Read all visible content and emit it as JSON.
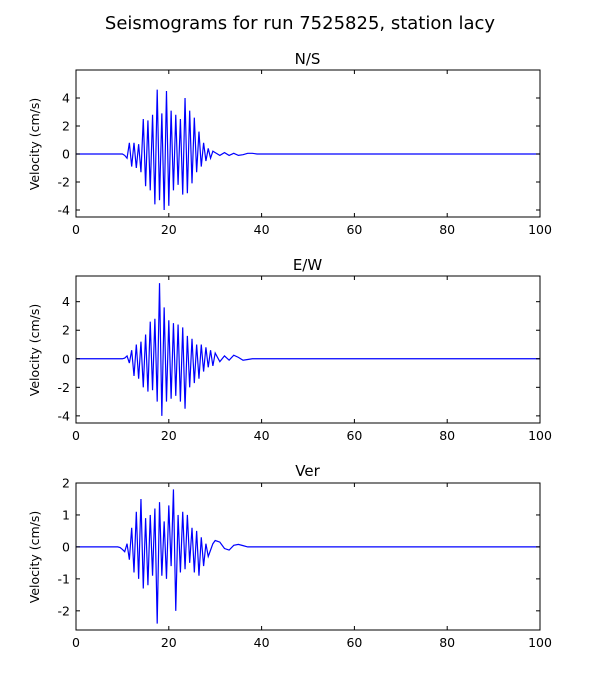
{
  "figure": {
    "title": "Seismograms for run 7525825, station lacy"
  },
  "chart_data": [
    {
      "type": "line",
      "title": "N/S",
      "xlabel": "",
      "ylabel": "Velocity (cm/s)",
      "xlim": [
        0,
        100
      ],
      "ylim": [
        -4.5,
        6.0
      ],
      "xticks": [
        0,
        20,
        40,
        60,
        80,
        100
      ],
      "yticks": [
        -4,
        -2,
        0,
        2,
        4
      ],
      "grid": false,
      "color": "#0000ff",
      "x": [
        0,
        10,
        10.5,
        11,
        11.5,
        12,
        12.5,
        13,
        13.5,
        14,
        14.5,
        15,
        15.5,
        16,
        16.5,
        17,
        17.5,
        18,
        18.5,
        19,
        19.5,
        20,
        20.5,
        21,
        21.5,
        22,
        22.5,
        23,
        23.5,
        24,
        24.5,
        25,
        25.5,
        26,
        26.5,
        27,
        27.5,
        28,
        28.5,
        29,
        29.5,
        30,
        31,
        32,
        33,
        34,
        35,
        36,
        37,
        38,
        39,
        40,
        41,
        42,
        45,
        50,
        60,
        70,
        80,
        90,
        100
      ],
      "y": [
        0,
        0,
        -0.1,
        -0.3,
        0.8,
        -0.9,
        0.8,
        -1.0,
        0.7,
        -1.3,
        2.5,
        -2.3,
        2.4,
        -2.6,
        2.8,
        -3.6,
        4.6,
        -3.3,
        2.9,
        -4.0,
        4.5,
        -3.7,
        3.1,
        -2.6,
        2.8,
        -2.2,
        2.5,
        -2.9,
        4.0,
        -2.8,
        3.1,
        -2.1,
        2.6,
        -1.3,
        1.6,
        -0.9,
        0.8,
        -0.5,
        0.4,
        -0.3,
        0.2,
        0.1,
        -0.1,
        0.1,
        -0.1,
        0.05,
        -0.1,
        -0.05,
        0.05,
        0.05,
        0.0,
        0.0,
        0.0,
        0.0,
        0,
        0,
        0,
        0,
        0,
        0,
        0
      ]
    },
    {
      "type": "line",
      "title": "E/W",
      "xlabel": "",
      "ylabel": "Velocity (cm/s)",
      "xlim": [
        0,
        100
      ],
      "ylim": [
        -4.5,
        5.8
      ],
      "xticks": [
        0,
        20,
        40,
        60,
        80,
        100
      ],
      "yticks": [
        -4,
        -2,
        0,
        2,
        4
      ],
      "grid": false,
      "color": "#0000ff",
      "x": [
        0,
        10,
        10.5,
        11,
        11.5,
        12,
        12.5,
        13,
        13.5,
        14,
        14.5,
        15,
        15.5,
        16,
        16.5,
        17,
        17.5,
        18,
        18.5,
        19,
        19.5,
        20,
        20.5,
        21,
        21.5,
        22,
        22.5,
        23,
        23.5,
        24,
        24.5,
        25,
        25.5,
        26,
        26.5,
        27,
        27.5,
        28,
        28.5,
        29,
        29.5,
        30,
        31,
        32,
        33,
        34,
        35,
        36,
        37,
        38,
        39,
        40,
        45,
        50,
        60,
        70,
        80,
        90,
        100
      ],
      "y": [
        0,
        0,
        0.05,
        0.2,
        -0.3,
        0.6,
        -1.2,
        1.0,
        -1.4,
        1.2,
        -2.0,
        1.7,
        -2.3,
        2.6,
        -2.2,
        2.8,
        -3.0,
        5.3,
        -4.0,
        3.6,
        -3.0,
        2.7,
        -2.8,
        2.5,
        -2.6,
        2.4,
        -3.0,
        2.2,
        -3.5,
        1.6,
        -2.0,
        1.4,
        -1.7,
        1.0,
        -1.4,
        1.0,
        -0.9,
        0.8,
        -0.6,
        0.6,
        -0.5,
        0.4,
        -0.2,
        0.2,
        -0.1,
        0.25,
        0.1,
        -0.1,
        -0.05,
        0.0,
        0.0,
        0.0,
        0,
        0,
        0,
        0,
        0,
        0,
        0
      ]
    },
    {
      "type": "line",
      "title": "Ver",
      "xlabel": "",
      "ylabel": "Velocity (cm/s)",
      "xlim": [
        0,
        100
      ],
      "ylim": [
        -2.6,
        2.0
      ],
      "xticks": [
        0,
        20,
        40,
        60,
        80,
        100
      ],
      "yticks": [
        -2,
        -1,
        0,
        1,
        2
      ],
      "grid": false,
      "color": "#0000ff",
      "x": [
        0,
        9,
        9.5,
        10,
        10.5,
        11,
        11.5,
        12,
        12.5,
        13,
        13.5,
        14,
        14.5,
        15,
        15.5,
        16,
        16.5,
        17,
        17.5,
        18,
        18.5,
        19,
        19.5,
        20,
        20.5,
        21,
        21.5,
        22,
        22.5,
        23,
        23.5,
        24,
        24.5,
        25,
        25.5,
        26,
        26.5,
        27,
        27.5,
        28,
        28.5,
        29,
        29.5,
        30,
        31,
        32,
        33,
        34,
        35,
        36,
        37,
        38,
        39,
        40,
        42,
        45,
        50,
        60,
        70,
        80,
        90,
        100
      ],
      "y": [
        0,
        0,
        -0.02,
        -0.08,
        -0.15,
        0.1,
        -0.4,
        0.6,
        -0.8,
        1.1,
        -1.0,
        1.5,
        -1.3,
        0.9,
        -1.2,
        1.0,
        -0.9,
        1.2,
        -2.4,
        1.4,
        -0.9,
        0.8,
        -1.0,
        1.3,
        -0.6,
        1.8,
        -2.0,
        1.0,
        -0.8,
        1.1,
        -0.7,
        1.0,
        -0.5,
        0.6,
        -0.8,
        0.5,
        -0.9,
        0.3,
        -0.6,
        0.1,
        -0.3,
        -0.1,
        0.1,
        0.2,
        0.15,
        -0.05,
        -0.1,
        0.05,
        0.08,
        0.04,
        0.0,
        0.0,
        0.0,
        0.0,
        0,
        0,
        0,
        0,
        0,
        0,
        0,
        0
      ]
    }
  ]
}
